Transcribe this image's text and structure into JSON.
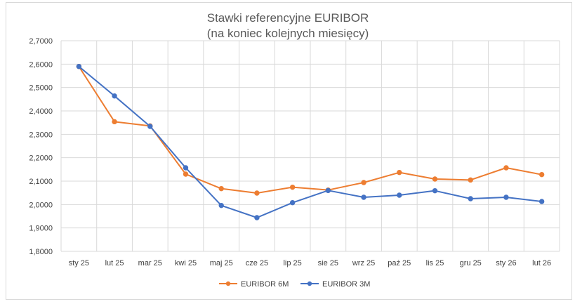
{
  "chart_data": {
    "type": "line",
    "title": "Stawki referencyjne EURIBOR",
    "subtitle": "(na koniec kolejnych miesięcy)",
    "categories": [
      "sty 25",
      "lut 25",
      "mar 25",
      "kwi 25",
      "maj 25",
      "cze 25",
      "lip 25",
      "sie 25",
      "wrz 25",
      "paź 25",
      "lis 25",
      "gru 25",
      "sty 26",
      "lut 26"
    ],
    "series": [
      {
        "name": "EURIBOR 6M",
        "color": "#ED7D31",
        "values": [
          2.59,
          2.354,
          2.336,
          2.13,
          2.068,
          2.049,
          2.074,
          2.062,
          2.094,
          2.137,
          2.109,
          2.105,
          2.157,
          2.128
        ]
      },
      {
        "name": "EURIBOR 3M",
        "color": "#4472C4",
        "values": [
          2.59,
          2.464,
          2.334,
          2.157,
          1.996,
          1.944,
          2.008,
          2.06,
          2.031,
          2.04,
          2.059,
          2.025,
          2.031,
          2.013
        ]
      }
    ],
    "ylim": [
      1.8,
      2.7
    ],
    "yticks": [
      "1,8000",
      "1,9000",
      "2,0000",
      "2,1000",
      "2,2000",
      "2,3000",
      "2,4000",
      "2,5000",
      "2,6000",
      "2,7000"
    ],
    "ytick_values": [
      1.8,
      1.9,
      2.0,
      2.1,
      2.2,
      2.3,
      2.4,
      2.5,
      2.6,
      2.7
    ],
    "grid": true,
    "legend_position": "bottom"
  }
}
